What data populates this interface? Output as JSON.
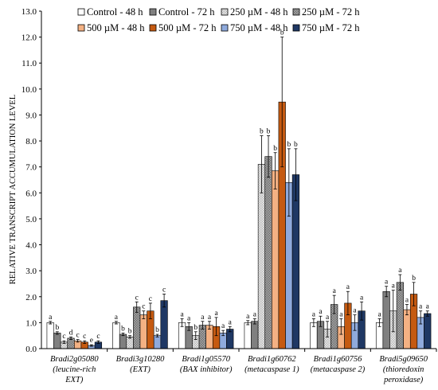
{
  "chart_data": {
    "type": "bar",
    "ylabel": "RELATIVE TRANSCRIPT ACCUMULATION LEVEL",
    "ylim": [
      0,
      13
    ],
    "yticks": [
      "0.0",
      "1.0",
      "2.0",
      "3.0",
      "4.0",
      "5.0",
      "6.0",
      "7.0",
      "8.0",
      "9.0",
      "10.0",
      "11.0",
      "12.0",
      "13.0"
    ],
    "legend_position": "top",
    "categories": [
      [
        "Bradi2g05080",
        "(leucine-rich",
        "EXT)"
      ],
      [
        "Bradi3g10280",
        "(EXT)"
      ],
      [
        "Bradi1g05570",
        "(BAX inhibitor)"
      ],
      [
        "Bradi1g60762",
        "(metacaspase 1)"
      ],
      [
        "Bradi1g60756",
        "(metacaspase 2)"
      ],
      [
        "Bradi5g09650",
        "(thioredoxin",
        "peroxidase)"
      ]
    ],
    "series": [
      {
        "name": "Control - 48 h",
        "color": "#ffffff",
        "pattern": "solid",
        "values": [
          1.0,
          1.0,
          1.0,
          1.0,
          1.0,
          1.0
        ],
        "errors": [
          0.05,
          0.05,
          0.15,
          0.08,
          0.15,
          0.15
        ],
        "labels": [
          "a",
          "a",
          "a",
          "a",
          "a",
          "a"
        ]
      },
      {
        "name": "Control - 72 h",
        "color": "#808080",
        "pattern": "solid",
        "values": [
          0.6,
          0.55,
          0.85,
          1.05,
          1.05,
          2.2
        ],
        "errors": [
          0.05,
          0.05,
          0.15,
          0.1,
          0.2,
          0.2
        ],
        "labels": [
          "b",
          "b",
          "a",
          "a",
          "a",
          "a"
        ]
      },
      {
        "name": "250 µM  - 48 h",
        "color": "#d0d0d0",
        "pattern": "checker",
        "values": [
          0.25,
          0.45,
          0.5,
          7.1,
          0.75,
          1.45
        ],
        "errors": [
          0.05,
          0.05,
          0.15,
          1.1,
          0.3,
          0.8
        ],
        "labels": [
          "c",
          "b",
          "b",
          "b",
          "a",
          "a"
        ]
      },
      {
        "name": "250 µM  - 72 h",
        "color": "#909090",
        "pattern": "checker",
        "values": [
          0.4,
          1.6,
          0.9,
          7.4,
          1.7,
          2.55
        ],
        "errors": [
          0.05,
          0.2,
          0.15,
          0.8,
          0.35,
          0.3
        ],
        "labels": [
          "d",
          "c",
          "a",
          "b",
          "a",
          "a"
        ]
      },
      {
        "name": "500 µM  - 48 h",
        "color": "#f4b183",
        "pattern": "solid",
        "values": [
          0.3,
          1.3,
          0.9,
          6.85,
          0.85,
          1.5
        ],
        "errors": [
          0.05,
          0.15,
          0.15,
          0.7,
          0.3,
          0.2
        ],
        "labels": [
          "c",
          "c",
          "a",
          "b",
          "a",
          "a"
        ]
      },
      {
        "name": "500 µM  - 72 h",
        "color": "#c55a11",
        "pattern": "solid",
        "values": [
          0.25,
          1.45,
          0.85,
          9.5,
          1.75,
          2.1
        ],
        "errors": [
          0.05,
          0.3,
          0.35,
          2.5,
          0.45,
          0.45
        ],
        "labels": [
          "c",
          "c",
          "a",
          "b",
          "a",
          "b"
        ]
      },
      {
        "name": "750 µM  - 48 h",
        "color": "#8faadc",
        "pattern": "solid",
        "values": [
          0.12,
          0.5,
          0.6,
          6.4,
          1.0,
          1.2
        ],
        "errors": [
          0.03,
          0.05,
          0.1,
          1.3,
          0.3,
          0.25
        ],
        "labels": [
          "e",
          "b",
          "a",
          "b",
          "a",
          "a"
        ]
      },
      {
        "name": "750 µM  - 72 h",
        "color": "#1f3864",
        "pattern": "solid",
        "values": [
          0.25,
          1.85,
          0.75,
          6.7,
          1.45,
          1.35
        ],
        "errors": [
          0.05,
          0.25,
          0.1,
          1.0,
          0.35,
          0.1
        ],
        "labels": [
          "c",
          "c",
          "a",
          "b",
          "a",
          "a"
        ]
      }
    ]
  }
}
